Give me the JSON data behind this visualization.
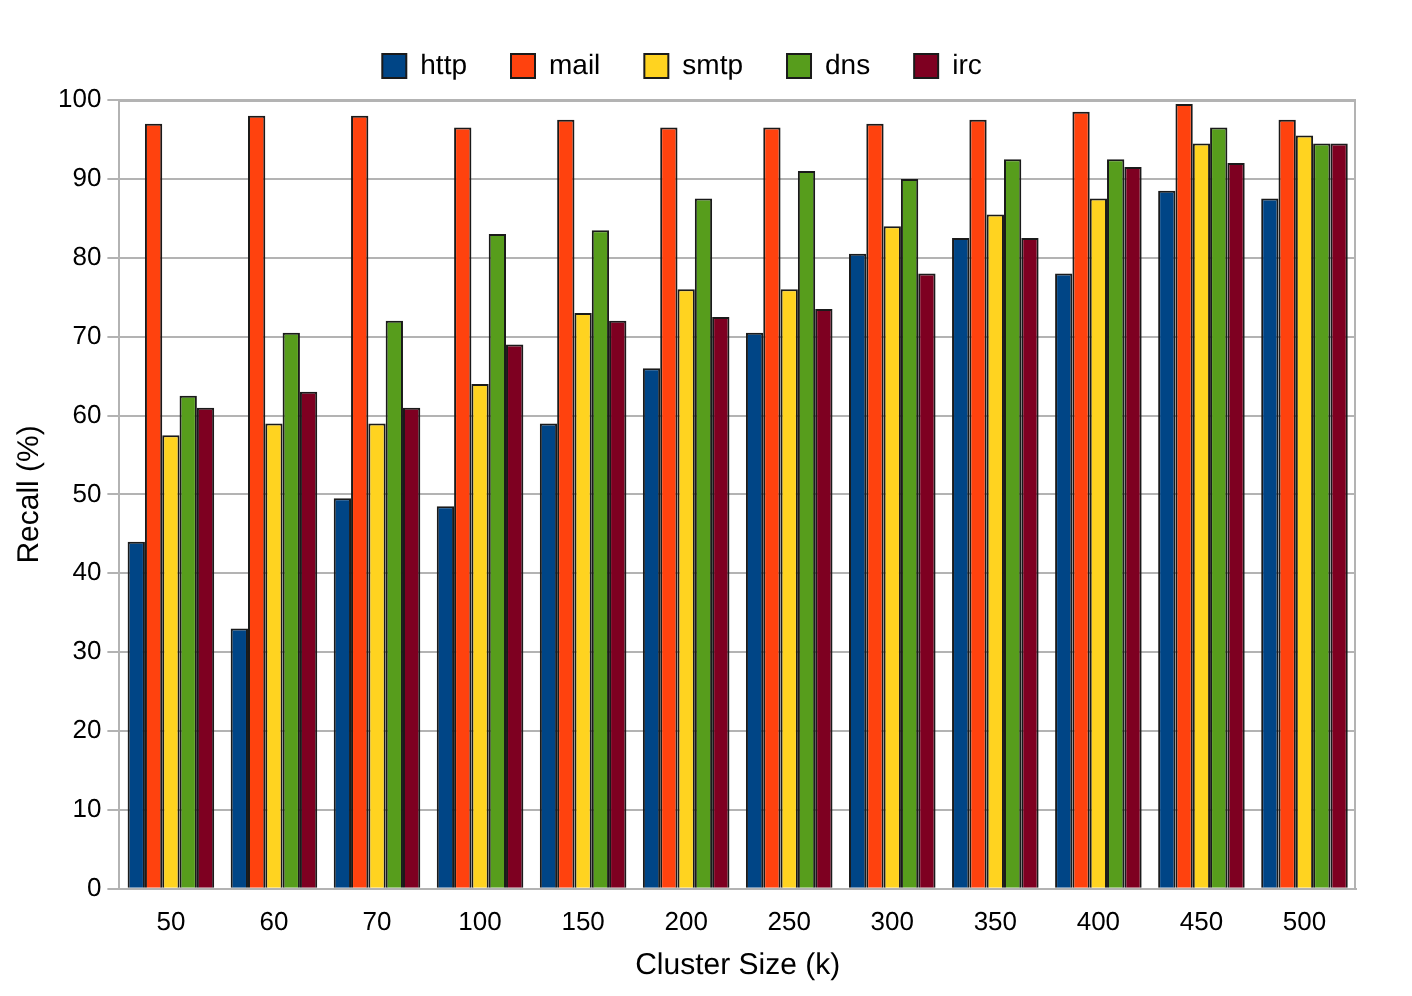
{
  "chart_data": {
    "type": "bar",
    "xlabel": "Cluster Size (k)",
    "ylabel": "Recall (%)",
    "categories": [
      "50",
      "60",
      "70",
      "100",
      "150",
      "200",
      "250",
      "300",
      "350",
      "400",
      "450",
      "500"
    ],
    "series": [
      {
        "name": "http",
        "color": "#004586",
        "values": [
          44,
          33,
          49.5,
          48.5,
          59,
          66,
          70.5,
          80.5,
          82.5,
          78,
          88.5,
          87.5
        ]
      },
      {
        "name": "mail",
        "color": "#ff420e",
        "values": [
          97,
          98,
          98,
          96.5,
          97.5,
          96.5,
          96.5,
          97,
          97.5,
          98.5,
          99.5,
          97.5
        ]
      },
      {
        "name": "smtp",
        "color": "#ffd320",
        "values": [
          57.5,
          59,
          59,
          64,
          73,
          76,
          76,
          84,
          85.5,
          87.5,
          94.5,
          95.5
        ]
      },
      {
        "name": "dns",
        "color": "#579d1c",
        "values": [
          62.5,
          70.5,
          72,
          83,
          83.5,
          87.5,
          91,
          90,
          92.5,
          92.5,
          96.5,
          94.5
        ]
      },
      {
        "name": "irc",
        "color": "#7e0021",
        "values": [
          61,
          63,
          61,
          69,
          72,
          72.5,
          73.5,
          78,
          82.5,
          91.5,
          92,
          94.5
        ]
      }
    ],
    "ylim": [
      0,
      100
    ],
    "yticks": [
      0,
      10,
      20,
      30,
      40,
      50,
      60,
      70,
      80,
      90,
      100
    ],
    "grid": "y",
    "legend": "top"
  }
}
